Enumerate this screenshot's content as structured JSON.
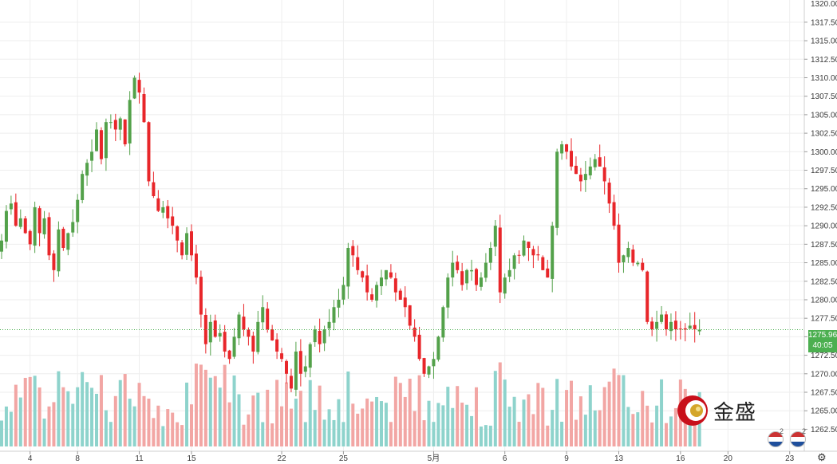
{
  "chart_data": {
    "type": "candlestick",
    "title": "",
    "xlabel": "",
    "ylabel": "",
    "ylim": [
      1260.5,
      1320.5
    ],
    "y_ticks": [
      1262.5,
      1265.0,
      1267.5,
      1270.0,
      1272.5,
      1275.0,
      1277.5,
      1280.0,
      1282.5,
      1285.0,
      1287.5,
      1290.0,
      1292.5,
      1295.0,
      1297.5,
      1300.0,
      1302.5,
      1305.0,
      1307.5,
      1310.0,
      1312.5,
      1315.0,
      1317.5
    ],
    "y_tick_labels": [
      "1262.50",
      "1265.00",
      "1267.50",
      "1270.00",
      "1272.50",
      "1275.00",
      "1277.50",
      "1280.00",
      "1282.50",
      "1285.00",
      "1287.50",
      "1290.00",
      "1292.50",
      "1295.00",
      "1297.50",
      "1300.00",
      "1302.50",
      "1305.00",
      "1307.50",
      "1310.00",
      "1312.50",
      "1315.00",
      "1317.50"
    ],
    "top_tick_partial": "1320.00",
    "x_tick_labels": [
      {
        "label": "4",
        "bar": 6
      },
      {
        "label": "8",
        "bar": 16
      },
      {
        "label": "11",
        "bar": 29
      },
      {
        "label": "15",
        "bar": 40
      },
      {
        "label": "22",
        "bar": 59
      },
      {
        "label": "25",
        "bar": 72
      },
      {
        "label": "5月",
        "bar": 91
      },
      {
        "label": "6",
        "bar": 106
      },
      {
        "label": "9",
        "bar": 119
      },
      {
        "label": "13",
        "bar": 130
      },
      {
        "label": "16",
        "bar": 143
      },
      {
        "label": "20",
        "bar": 153
      },
      {
        "label": "23",
        "bar": 166
      }
    ],
    "current_price": "1275.96",
    "countdown": "40:05",
    "colors": {
      "up": "#53a14a",
      "down": "#e8262a",
      "vol_up": "#8ed3cc",
      "vol_down": "#f2a6a4",
      "price_line": "#4caf50",
      "grid": "#eeeeee"
    },
    "close_path": [
      1288,
      1292,
      1293,
      1290,
      1291,
      1289,
      1287.5,
      1292.5,
      1289,
      1291,
      1286,
      1284,
      1289.5,
      1287,
      1289,
      1290.5,
      1293.5,
      1297,
      1298.5,
      1300,
      1303,
      1299,
      1304,
      1304,
      1303,
      1304.5,
      1301,
      1307,
      1310,
      1308,
      1304,
      1296,
      1294,
      1292,
      1292.5,
      1291,
      1290,
      1288,
      1286,
      1289,
      1286,
      1283,
      1278,
      1274,
      1277,
      1275,
      1275.5,
      1273,
      1272,
      1275,
      1278,
      1276,
      1275,
      1273,
      1277,
      1279,
      1276,
      1274.5,
      1273,
      1272,
      1270,
      1268,
      1273,
      1270,
      1271,
      1274,
      1276,
      1274,
      1276,
      1277,
      1279,
      1280,
      1282,
      1287,
      1286,
      1284,
      1283,
      1281,
      1280,
      1282,
      1283,
      1284,
      1283,
      1281,
      1280,
      1279,
      1276.5,
      1275,
      1272,
      1270,
      1271,
      1272,
      1275,
      1279,
      1283,
      1285,
      1284,
      1282,
      1284,
      1284,
      1282,
      1283,
      1285,
      1287,
      1290,
      1281,
      1283,
      1284,
      1286,
      1286,
      1288,
      1287,
      1286,
      1286,
      1284,
      1283,
      1290,
      1300,
      1301,
      1300,
      1298,
      1297,
      1296,
      1297,
      1298,
      1299,
      1298,
      1296,
      1293,
      1290,
      1285,
      1286,
      1287,
      1285,
      1285,
      1284,
      1277,
      1276,
      1277,
      1278,
      1276,
      1277,
      1276,
      1276,
      1275.96,
      1276.5,
      1276,
      1275.96
    ]
  },
  "ui": {
    "price_tag_value": "1275.96",
    "countdown": "40:05",
    "logo_text": "金盛",
    "flag_count_1": "2",
    "flag_count_2": "2",
    "settings_icon": "gear-icon"
  }
}
